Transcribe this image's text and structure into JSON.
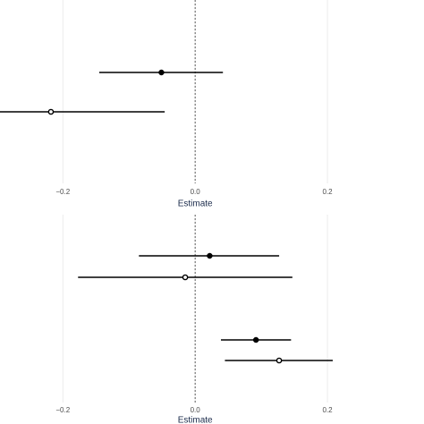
{
  "chart_data": [
    {
      "type": "forest",
      "x_label": "Estimate",
      "color": "#000000",
      "grid": true,
      "zero_line": true,
      "xlim": [
        -0.295,
        0.346
      ],
      "xticks": [
        {
          "value": -0.2,
          "label": "−0.2"
        },
        {
          "value": 0,
          "label": "0.0"
        },
        0.2
      ],
      "categories": [
        null,
        null
      ],
      "estimates": [
        -0.051,
        -0.218
      ],
      "lower": [
        -0.145,
        -0.295
      ],
      "upper": [
        0.042,
        -0.046
      ],
      "markers": [
        "filled",
        "open"
      ]
    },
    {
      "type": "forest",
      "x_label": "Estimate",
      "color": "#000000",
      "grid": true,
      "zero_line": true,
      "xlim": [
        -0.295,
        0.346
      ],
      "xticks": [
        {
          "value": -0.2,
          "label": "−0.2"
        },
        {
          "value": 0,
          "label": "0.0"
        },
        0.2
      ],
      "categories": [
        null,
        null,
        null,
        null
      ],
      "estimates": [
        0.022,
        -0.015,
        0.092,
        0.127
      ],
      "lower": [
        -0.085,
        -0.177,
        0.039,
        0.045
      ],
      "upper": [
        0.127,
        0.147,
        0.145,
        0.208
      ],
      "markers": [
        "filled",
        "open",
        "filled",
        "open"
      ]
    }
  ]
}
